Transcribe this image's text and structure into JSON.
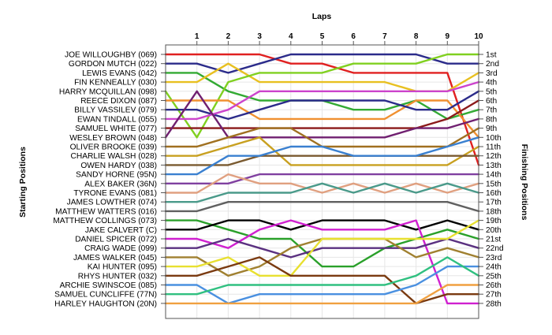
{
  "chart_data": {
    "type": "line",
    "title": "Laps",
    "ylabel_left": "Starting Positions",
    "ylabel_right": "Finishing Positions",
    "x_ticks": [
      "1",
      "2",
      "3",
      "4",
      "5",
      "6",
      "7",
      "8",
      "9",
      "10"
    ],
    "xlim": [
      0,
      10
    ],
    "ylim": [
      1,
      28
    ],
    "grid": true,
    "drivers": [
      "JOE WILLOUGHBY (069)",
      "GORDON MUTCH (022)",
      "LEWIS EVANS (042)",
      "FIN KENNEALLY (030)",
      "HARRY MCQUILLAN (098)",
      "REECE DIXON (087)",
      "BILLY VASSILEV (079)",
      "EWAN TINDALL (055)",
      "SAMUEL WHITE (077)",
      "WESLEY BROWN (048)",
      "OLIVER BROOKE (039)",
      "CHARLIE WALSH (028)",
      "OWEN HARDY (038)",
      "SANDY HORNE (95N)",
      "ALEX BAKER (36N)",
      "TYRONE EVANS (081)",
      "JAMES LOWTHER (074)",
      "MATTHEW WATTERS (016)",
      "MATTHEW COLLINGS (073)",
      "JAKE CALVERT (C)",
      "DANIEL SPICER (072)",
      "CRAIG WADE (099)",
      "JAMES WALKER (045)",
      "KAI HUNTER (095)",
      "RHYS HUNTER (032)",
      "ARCHIE SWINSCOE (085)",
      "SAMUEL CUNCLIFFE (77N)",
      "HARLEY HAUGHTON (20N)"
    ],
    "finishing_labels": [
      "1st",
      "2nd",
      "3rd",
      "4th",
      "5th",
      "6th",
      "7th",
      "8th",
      "9th",
      "10th",
      "11th",
      "12th",
      "13th",
      "14th",
      "15th",
      "16th",
      "17th",
      "18th",
      "19th",
      "20th",
      "21st",
      "22nd",
      "23rd",
      "24th",
      "25th",
      "26th",
      "27th",
      "28th"
    ],
    "series": [
      {
        "color": "#e02020",
        "positions": [
          1,
          1,
          1,
          2,
          2,
          3,
          3,
          3,
          3,
          13
        ]
      },
      {
        "color": "#2b2b8a",
        "positions": [
          2,
          3,
          2,
          1,
          1,
          1,
          1,
          1,
          2,
          2
        ]
      },
      {
        "color": "#33aa33",
        "positions": [
          3,
          5,
          6,
          6,
          6,
          7,
          7,
          6,
          8,
          7
        ]
      },
      {
        "color": "#e8c020",
        "positions": [
          4,
          2,
          4,
          4,
          4,
          4,
          4,
          5,
          5,
          3
        ]
      },
      {
        "color": "#80d020",
        "positions": [
          10,
          4,
          3,
          3,
          3,
          2,
          2,
          2,
          1,
          1
        ]
      },
      {
        "color": "#f09030",
        "positions": [
          6,
          6,
          8,
          8,
          8,
          8,
          8,
          6,
          6,
          10
        ]
      },
      {
        "color": "#2b2b8a",
        "positions": [
          7,
          8,
          7,
          6,
          6,
          6,
          6,
          7,
          7,
          5
        ]
      },
      {
        "color": "#cc44cc",
        "positions": [
          8,
          7,
          5,
          5,
          5,
          5,
          5,
          5,
          5,
          4
        ]
      },
      {
        "color": "#8b1a1a",
        "positions": [
          9,
          9,
          9,
          9,
          9,
          9,
          9,
          9,
          8,
          6
        ]
      },
      {
        "color": "#702070",
        "positions": [
          5,
          10,
          10,
          10,
          10,
          10,
          10,
          9,
          9,
          8
        ]
      },
      {
        "color": "#a07020",
        "positions": [
          11,
          10,
          9,
          9,
          11,
          11,
          11,
          11,
          11,
          9
        ]
      },
      {
        "color": "#c8a020",
        "positions": [
          12,
          11,
          10,
          13,
          13,
          13,
          13,
          13,
          13,
          11
        ]
      },
      {
        "color": "#7a5a30",
        "positions": [
          13,
          13,
          12,
          12,
          12,
          12,
          12,
          12,
          12,
          12
        ]
      },
      {
        "color": "#3a80d0",
        "positions": [
          14,
          12,
          12,
          11,
          11,
          12,
          12,
          12,
          11,
          10
        ]
      },
      {
        "color": "#8040a0",
        "positions": [
          15,
          15,
          14,
          14,
          14,
          14,
          14,
          14,
          14,
          14
        ]
      },
      {
        "color": "#e0a080",
        "positions": [
          16,
          14,
          15,
          15,
          16,
          15,
          16,
          15,
          16,
          15
        ]
      },
      {
        "color": "#4a9a8a",
        "positions": [
          17,
          16,
          16,
          16,
          15,
          16,
          15,
          16,
          15,
          16
        ]
      },
      {
        "color": "#606060",
        "positions": [
          18,
          17,
          17,
          17,
          17,
          17,
          17,
          17,
          17,
          18
        ]
      },
      {
        "color": "#2aa02a",
        "positions": [
          19,
          20,
          21,
          21,
          24,
          24,
          22,
          21,
          20,
          21
        ]
      },
      {
        "color": "#000000",
        "positions": [
          20,
          19,
          19,
          20,
          19,
          19,
          19,
          20,
          19,
          20
        ]
      },
      {
        "color": "#d020d0",
        "positions": [
          21,
          22,
          20,
          19,
          20,
          20,
          20,
          19,
          28,
          28
        ]
      },
      {
        "color": "#5a3080",
        "positions": [
          22,
          21,
          22,
          23,
          22,
          22,
          22,
          22,
          21,
          22
        ]
      },
      {
        "color": "#a08030",
        "positions": [
          23,
          25,
          24,
          22,
          21,
          21,
          21,
          23,
          22,
          23
        ]
      },
      {
        "color": "#e8e030",
        "positions": [
          24,
          23,
          25,
          25,
          21,
          21,
          21,
          21,
          21,
          19
        ]
      },
      {
        "color": "#7a3a10",
        "positions": [
          25,
          24,
          23,
          25,
          25,
          25,
          25,
          28,
          27,
          27
        ]
      },
      {
        "color": "#4a90e0",
        "positions": [
          26,
          28,
          27,
          27,
          27,
          27,
          27,
          26,
          24,
          24
        ]
      },
      {
        "color": "#30c080",
        "positions": [
          27,
          26,
          26,
          26,
          26,
          26,
          26,
          25,
          23,
          25
        ]
      },
      {
        "color": "#f0a040",
        "positions": [
          28,
          28,
          28,
          28,
          28,
          28,
          28,
          28,
          26,
          26
        ]
      }
    ]
  }
}
